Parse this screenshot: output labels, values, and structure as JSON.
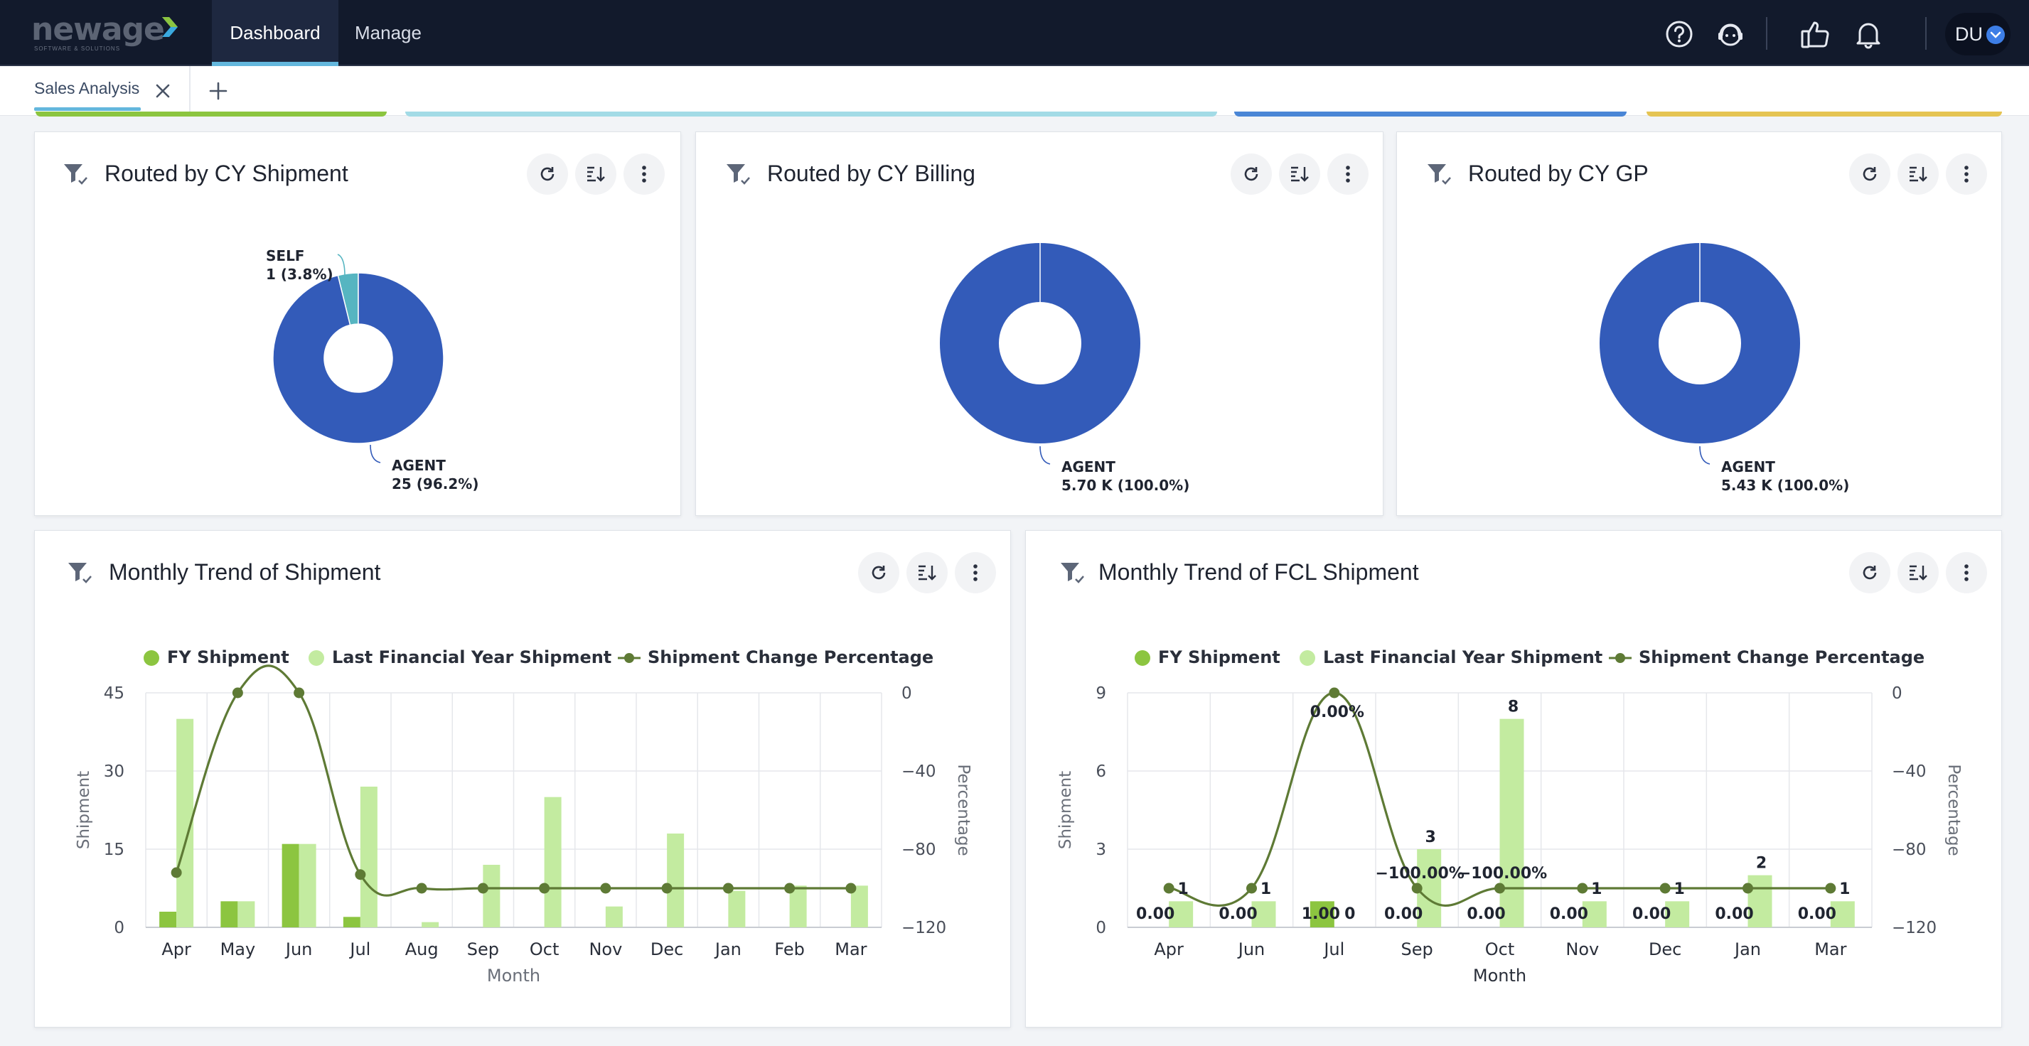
{
  "app": {
    "logo_name": "newage",
    "logo_tagline": "SOFTWARE & SOLUTIONS",
    "nav_tabs": [
      "Dashboard",
      "Manage"
    ],
    "active_nav": "Dashboard",
    "user_initials": "DU",
    "icons": [
      "help-icon",
      "support-agent-icon",
      "thumbs-up-icon",
      "bell-icon",
      "chevron-down-icon"
    ]
  },
  "tabs": {
    "items": [
      "Sales Analysis"
    ],
    "active": "Sales Analysis"
  },
  "colors": {
    "primary_blue": "#335bb9",
    "teal": "#56b5c1",
    "fy_green": "#8cc540",
    "last_fy_green": "#c3eba0",
    "trend_line": "#5e7a35",
    "strip_green": "#8cc540",
    "strip_lightblue": "#a3dbe6",
    "strip_blue": "#4a86d6",
    "strip_yellow": "#e5c453"
  },
  "cards": {
    "pie1": {
      "title": "Routed by CY Shipment"
    },
    "pie2": {
      "title": "Routed by CY Billing"
    },
    "pie3": {
      "title": "Routed by CY GP"
    },
    "trend1": {
      "title": "Monthly Trend of Shipment"
    },
    "trend2": {
      "title": "Monthly Trend of FCL Shipment"
    }
  },
  "chart_data": [
    {
      "id": "pie1",
      "type": "pie",
      "title": "Routed by CY Shipment",
      "slices": [
        {
          "label": "SELF",
          "value": 1,
          "display": "1 (3.8%)",
          "percent": 3.8,
          "color": "#56b5c1"
        },
        {
          "label": "AGENT",
          "value": 25,
          "display": "25 (96.2%)",
          "percent": 96.2,
          "color": "#335bb9"
        }
      ]
    },
    {
      "id": "pie2",
      "type": "pie",
      "title": "Routed by CY Billing",
      "slices": [
        {
          "label": "AGENT",
          "value": 5700,
          "display": "5.70 K (100.0%)",
          "percent": 100.0,
          "color": "#335bb9"
        }
      ]
    },
    {
      "id": "pie3",
      "type": "pie",
      "title": "Routed by CY GP",
      "slices": [
        {
          "label": "AGENT",
          "value": 5430,
          "display": "5.43 K (100.0%)",
          "percent": 100.0,
          "color": "#335bb9"
        }
      ]
    },
    {
      "id": "trend1",
      "type": "bar",
      "title": "Monthly Trend of Shipment",
      "xlabel": "Month",
      "ylabel": "Shipment",
      "y2label": "Percentage",
      "ylim": [
        0,
        45
      ],
      "yticks": [
        0,
        15,
        30,
        45
      ],
      "y2lim": [
        -120,
        0
      ],
      "y2ticks": [
        0,
        -40,
        -80,
        -120
      ],
      "categories": [
        "Apr",
        "May",
        "Jun",
        "Jul",
        "Aug",
        "Sep",
        "Oct",
        "Nov",
        "Dec",
        "Jan",
        "Feb",
        "Mar"
      ],
      "series": [
        {
          "name": "FY Shipment",
          "kind": "bar",
          "values": [
            3,
            5,
            16,
            2,
            0,
            0,
            0,
            0,
            0,
            0,
            0,
            0
          ]
        },
        {
          "name": "Last Financial Year Shipment",
          "kind": "bar",
          "values": [
            40,
            5,
            16,
            27,
            1,
            12,
            25,
            4,
            18,
            7,
            8,
            8
          ]
        },
        {
          "name": "Shipment Change Percentage",
          "kind": "line",
          "axis": "y2",
          "values": [
            -92,
            0,
            0,
            -93,
            -100,
            -100,
            -100,
            -100,
            -100,
            -100,
            -100,
            -100
          ]
        }
      ],
      "legend": "top"
    },
    {
      "id": "trend2",
      "type": "bar",
      "title": "Monthly Trend of FCL Shipment",
      "xlabel": "Month",
      "ylabel": "Shipment",
      "y2label": "Percentage",
      "ylim": [
        0,
        9
      ],
      "yticks": [
        0,
        3,
        6,
        9
      ],
      "y2lim": [
        -120,
        0
      ],
      "y2ticks": [
        0,
        -40,
        -80,
        -120
      ],
      "categories": [
        "Apr",
        "Jun",
        "Jul",
        "Sep",
        "Oct",
        "Nov",
        "Dec",
        "Jan",
        "Mar"
      ],
      "series": [
        {
          "name": "FY Shipment",
          "kind": "bar",
          "values": [
            0,
            0,
            1,
            0,
            0,
            0,
            0,
            0,
            0
          ]
        },
        {
          "name": "Last Financial Year Shipment",
          "kind": "bar",
          "values": [
            1,
            1,
            0,
            3,
            8,
            1,
            1,
            2,
            1
          ]
        },
        {
          "name": "Shipment Change Percentage",
          "kind": "line",
          "axis": "y2",
          "values": [
            -100,
            -100,
            0,
            -100,
            -100,
            -100,
            -100,
            -100,
            -100
          ]
        }
      ],
      "data_labels": {
        "fy": [
          "0.00",
          "0.00",
          "1.00",
          "0.00",
          "0.00",
          "0.00",
          "0.00",
          "0.00",
          "0.00"
        ],
        "last_fy": [
          "1",
          "1",
          "0",
          "3",
          "8",
          "1",
          "1",
          "2",
          "1"
        ],
        "percent": [
          "",
          "",
          "0.00%",
          "-100.00%",
          "-100.00%",
          "",
          "",
          "",
          ""
        ]
      },
      "legend": "top"
    }
  ]
}
